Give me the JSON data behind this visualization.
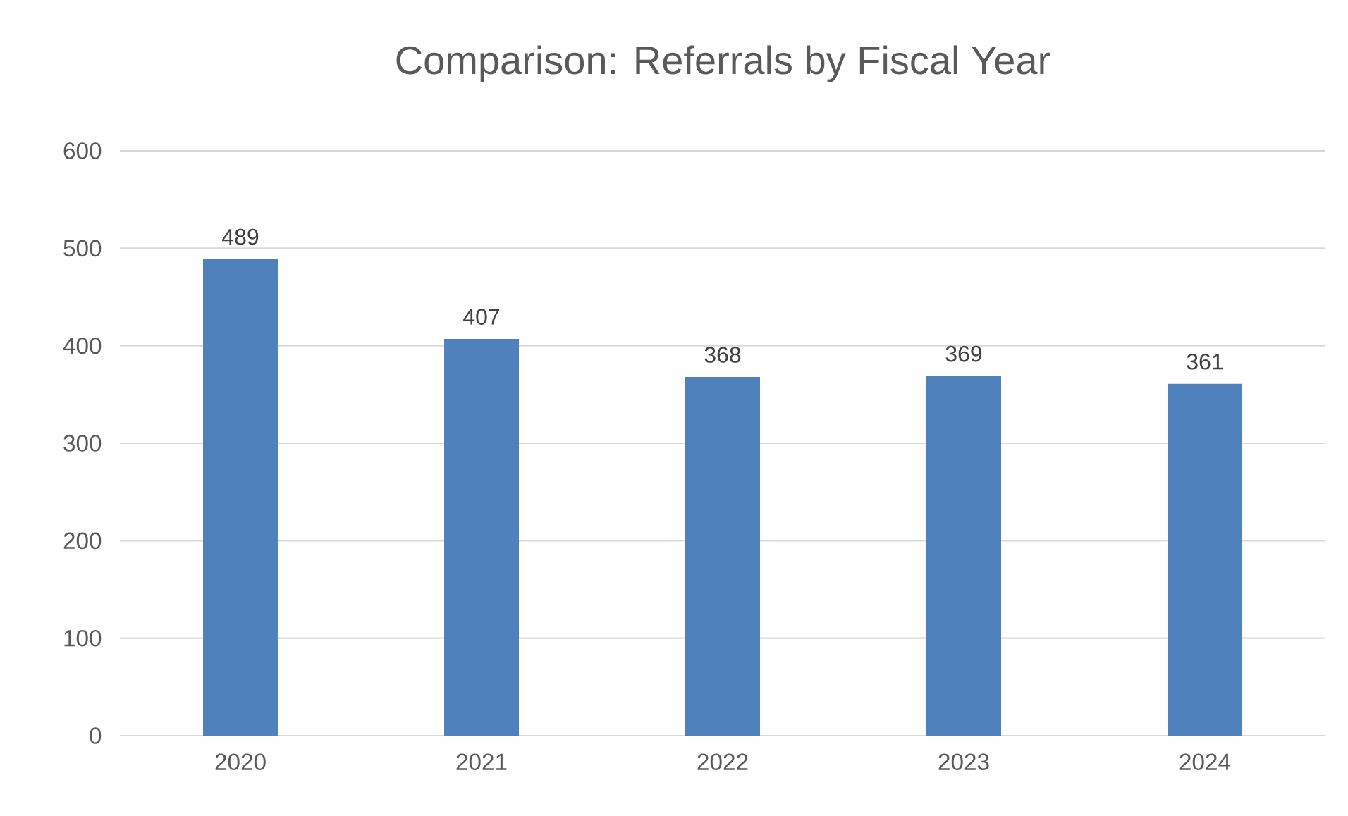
{
  "chart_data": {
    "type": "bar",
    "title": "Comparison: Referrals by Fiscal Year",
    "categories": [
      "2020",
      "2021",
      "2022",
      "2023",
      "2024"
    ],
    "values": [
      489,
      407,
      368,
      369,
      361
    ],
    "color": "#4f81bd",
    "ylim": [
      0,
      600
    ],
    "yticks": [
      0,
      100,
      200,
      300,
      400,
      500,
      600
    ],
    "grid": "y",
    "data_labels": true
  }
}
